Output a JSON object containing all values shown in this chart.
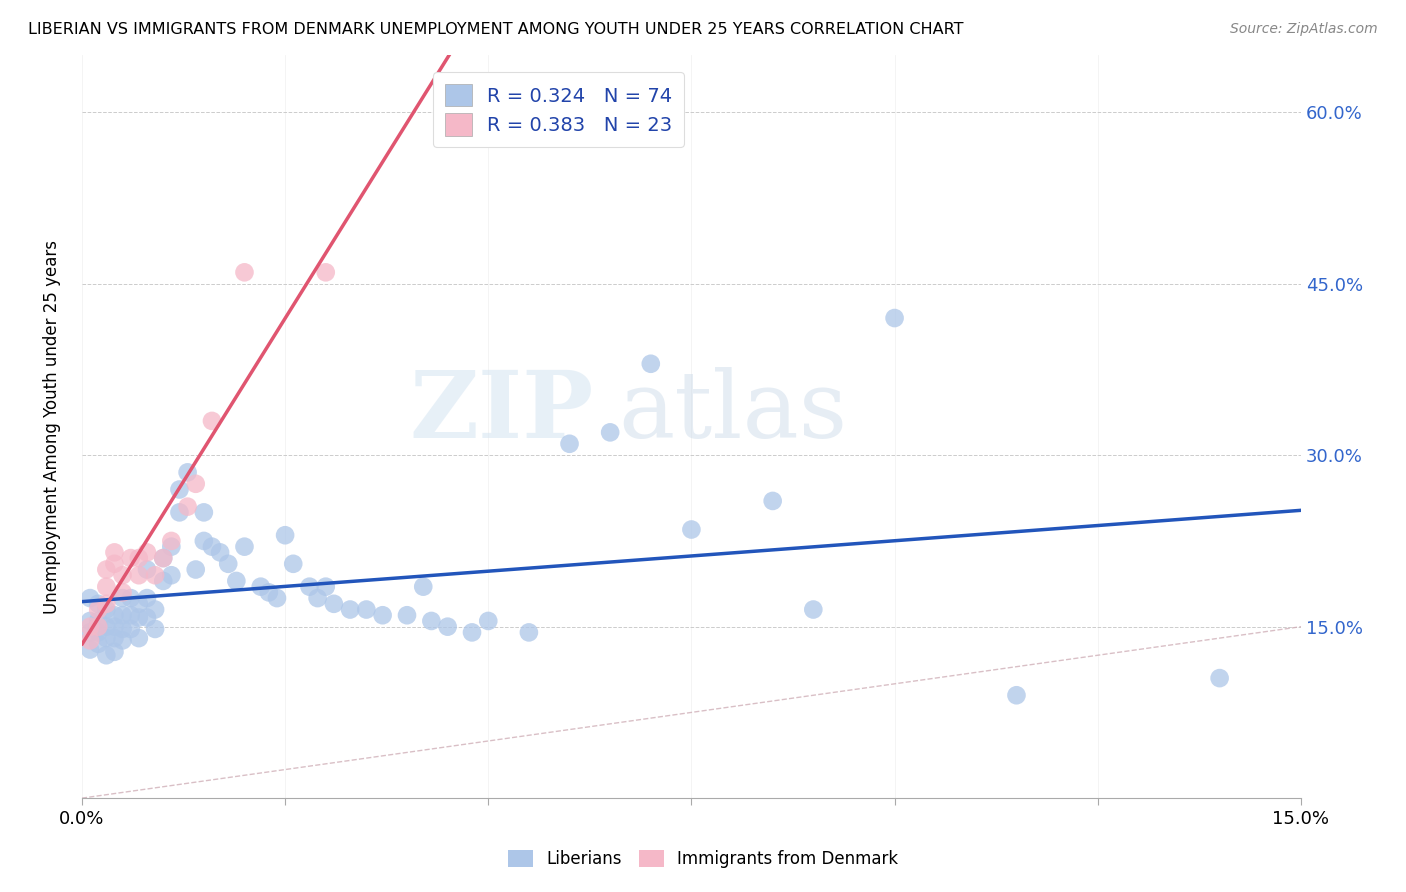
{
  "title": "LIBERIAN VS IMMIGRANTS FROM DENMARK UNEMPLOYMENT AMONG YOUTH UNDER 25 YEARS CORRELATION CHART",
  "source": "Source: ZipAtlas.com",
  "ylabel": "Unemployment Among Youth under 25 years",
  "xlim": [
    0.0,
    0.15
  ],
  "ylim": [
    0.0,
    0.65
  ],
  "xticks": [
    0.0,
    0.025,
    0.05,
    0.075,
    0.1,
    0.125,
    0.15
  ],
  "xticklabels": [
    "0.0%",
    "",
    "",
    "",
    "",
    "",
    "15.0%"
  ],
  "yticks": [
    0.0,
    0.15,
    0.3,
    0.45,
    0.6
  ],
  "yticklabels_right": [
    "",
    "15.0%",
    "30.0%",
    "45.0%",
    "60.0%"
  ],
  "legend_r1": "R = 0.324",
  "legend_n1": "N = 74",
  "legend_r2": "R = 0.383",
  "legend_n2": "N = 23",
  "color_liberian": "#adc6e8",
  "color_denmark": "#f5b8c8",
  "color_line1": "#2255bb",
  "color_line2": "#e05570",
  "color_diagonal": "#d0b0b8",
  "watermark_zip": "ZIP",
  "watermark_atlas": "atlas",
  "background_color": "#ffffff",
  "liberians_x": [
    0.001,
    0.001,
    0.001,
    0.001,
    0.002,
    0.002,
    0.002,
    0.002,
    0.003,
    0.003,
    0.003,
    0.003,
    0.004,
    0.004,
    0.004,
    0.004,
    0.005,
    0.005,
    0.005,
    0.005,
    0.006,
    0.006,
    0.006,
    0.007,
    0.007,
    0.007,
    0.008,
    0.008,
    0.008,
    0.009,
    0.009,
    0.01,
    0.01,
    0.011,
    0.011,
    0.012,
    0.012,
    0.013,
    0.014,
    0.015,
    0.015,
    0.016,
    0.017,
    0.018,
    0.019,
    0.02,
    0.022,
    0.023,
    0.024,
    0.025,
    0.026,
    0.028,
    0.029,
    0.03,
    0.031,
    0.033,
    0.035,
    0.037,
    0.04,
    0.042,
    0.043,
    0.045,
    0.048,
    0.05,
    0.055,
    0.06,
    0.065,
    0.07,
    0.075,
    0.085,
    0.09,
    0.1,
    0.115,
    0.14
  ],
  "liberians_y": [
    0.175,
    0.155,
    0.145,
    0.13,
    0.17,
    0.155,
    0.145,
    0.135,
    0.165,
    0.15,
    0.14,
    0.125,
    0.16,
    0.15,
    0.14,
    0.128,
    0.175,
    0.16,
    0.148,
    0.138,
    0.175,
    0.16,
    0.148,
    0.17,
    0.158,
    0.14,
    0.2,
    0.175,
    0.158,
    0.165,
    0.148,
    0.21,
    0.19,
    0.22,
    0.195,
    0.27,
    0.25,
    0.285,
    0.2,
    0.25,
    0.225,
    0.22,
    0.215,
    0.205,
    0.19,
    0.22,
    0.185,
    0.18,
    0.175,
    0.23,
    0.205,
    0.185,
    0.175,
    0.185,
    0.17,
    0.165,
    0.165,
    0.16,
    0.16,
    0.185,
    0.155,
    0.15,
    0.145,
    0.155,
    0.145,
    0.31,
    0.32,
    0.38,
    0.235,
    0.26,
    0.165,
    0.42,
    0.09,
    0.105
  ],
  "denmark_x": [
    0.001,
    0.001,
    0.002,
    0.002,
    0.003,
    0.003,
    0.003,
    0.004,
    0.004,
    0.005,
    0.005,
    0.006,
    0.007,
    0.007,
    0.008,
    0.009,
    0.01,
    0.011,
    0.013,
    0.014,
    0.016,
    0.02,
    0.03
  ],
  "denmark_y": [
    0.15,
    0.138,
    0.165,
    0.15,
    0.2,
    0.185,
    0.17,
    0.215,
    0.205,
    0.195,
    0.18,
    0.21,
    0.21,
    0.195,
    0.215,
    0.195,
    0.21,
    0.225,
    0.255,
    0.275,
    0.33,
    0.46,
    0.46
  ]
}
